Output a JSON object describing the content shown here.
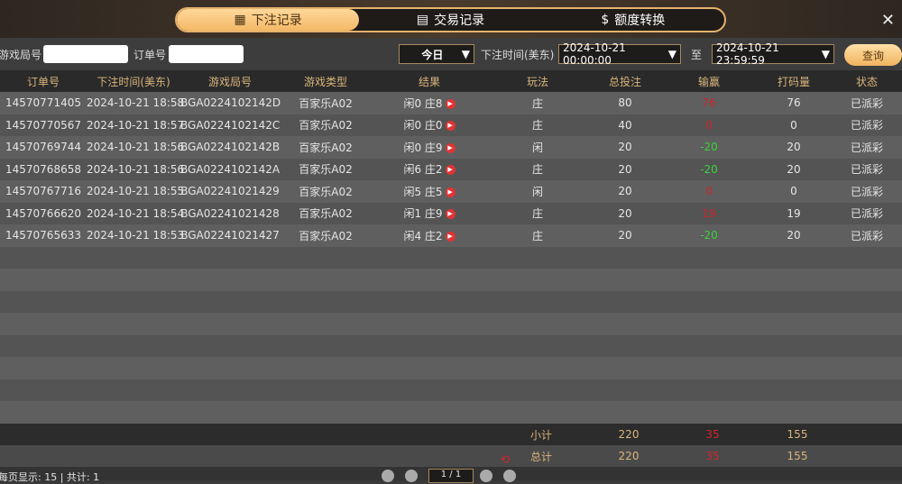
{
  "tabs": [
    {
      "label": "下注记录",
      "icon": "calendar-icon",
      "active": true
    },
    {
      "label": "交易记录",
      "icon": "clipboard-icon"
    },
    {
      "label": "额度转换",
      "icon": "coin-icon"
    }
  ],
  "filter": {
    "round_label": "游戏局号",
    "round_value": "",
    "order_label": "订单号",
    "order_value": "",
    "period": "今日",
    "time_label": "下注时间(美东)",
    "start": "2024-10-21 00:00:00",
    "to_label": "至",
    "end": "2024-10-21 23:59:59",
    "query_label": "查询"
  },
  "columns": [
    "订单号",
    "下注时间(美东)",
    "游戏局号",
    "游戏类型",
    "结果",
    "玩法",
    "总投注",
    "输赢",
    "打码量",
    "状态"
  ],
  "rows": [
    [
      "14570771405",
      "2024-10-21 18:58",
      "BGA0224102142D",
      "百家乐A02",
      "闲0 庄8",
      "庄",
      "80",
      "76",
      "76",
      "已派彩"
    ],
    [
      "14570770567",
      "2024-10-21 18:57",
      "BGA0224102142C",
      "百家乐A02",
      "闲0 庄0",
      "庄",
      "40",
      "0",
      "0",
      "已派彩"
    ],
    [
      "14570769744",
      "2024-10-21 18:56",
      "BGA0224102142B",
      "百家乐A02",
      "闲0 庄9",
      "闲",
      "20",
      "-20",
      "20",
      "已派彩"
    ],
    [
      "14570768658",
      "2024-10-21 18:56",
      "BGA0224102142A",
      "百家乐A02",
      "闲6 庄2",
      "庄",
      "20",
      "-20",
      "20",
      "已派彩"
    ],
    [
      "14570767716",
      "2024-10-21 18:55",
      "BGA02241021429",
      "百家乐A02",
      "闲5 庄5",
      "闲",
      "20",
      "0",
      "0",
      "已派彩"
    ],
    [
      "14570766620",
      "2024-10-21 18:54",
      "BGA02241021428",
      "百家乐A02",
      "闲1 庄9",
      "庄",
      "20",
      "19",
      "19",
      "已派彩"
    ],
    [
      "14570765633",
      "2024-10-21 18:53",
      "BGA02241021427",
      "百家乐A02",
      "闲4 庄2",
      "庄",
      "20",
      "-20",
      "20",
      "已派彩"
    ]
  ],
  "subtotal": {
    "label": "小计",
    "bet": "220",
    "win": "35",
    "turnover": "155"
  },
  "total": {
    "label": "总计",
    "bet": "220",
    "win": "35",
    "turnover": "155"
  },
  "pager": {
    "info": "每页显示: 15 | 共计: 1",
    "page": "1 / 1"
  },
  "colors": {
    "win": "#d0242c",
    "loss": "#3ed13e",
    "accent": "#f3b866"
  }
}
